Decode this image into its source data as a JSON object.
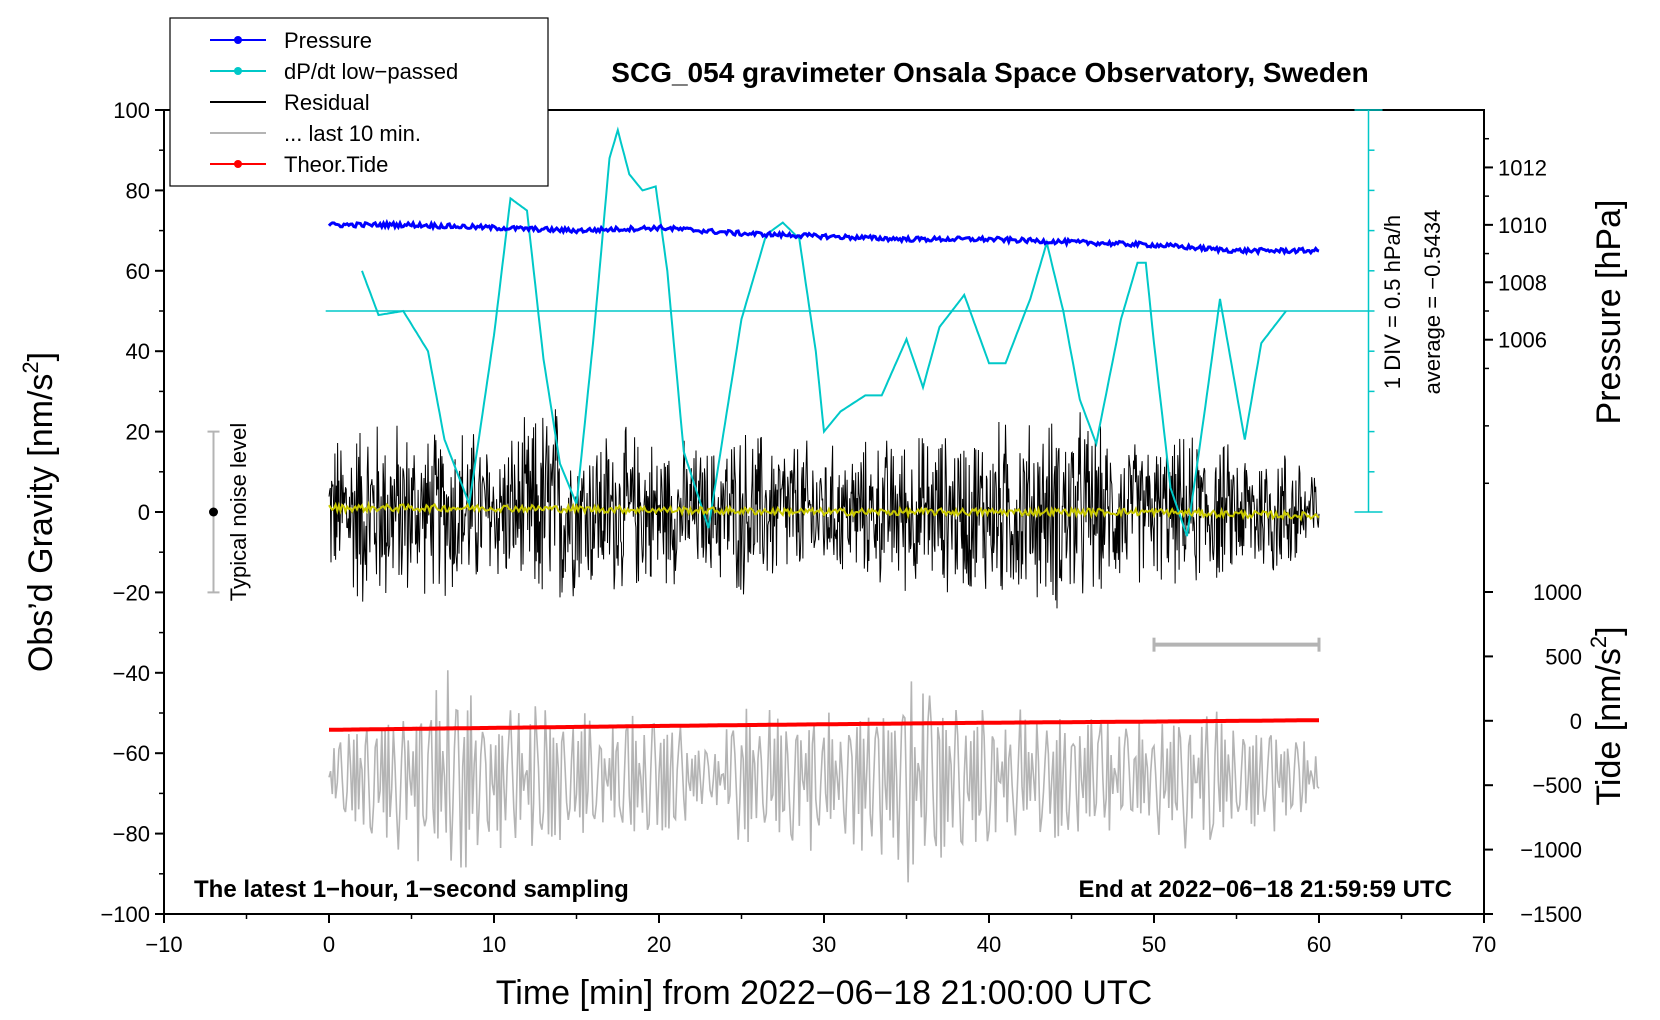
{
  "chart_data": {
    "type": "line",
    "title": "SCG_054 gravimeter Onsala Space Observatory, Sweden",
    "xlabel": "Time [min] from 2022−06−18 21:00:00 UTC",
    "ylabel_left": "Obs’d Gravity [nm/s",
    "ylabel_left_sup": "2",
    "ylabel_left_end": "]",
    "ylabel_right_top": "Pressure [hPa]",
    "ylabel_right_bottom": "Tide [nm/s",
    "ylabel_right_bottom_sup": "2",
    "ylabel_right_bottom_end": "]",
    "xlim": [
      -10,
      70
    ],
    "ylim_left": [
      -100,
      100
    ],
    "pressure_ylim": [
      1000,
      1014
    ],
    "tide_ylim": [
      -1500,
      1000
    ],
    "x_ticks": [
      "−10",
      "0",
      "10",
      "20",
      "30",
      "40",
      "50",
      "60",
      "70"
    ],
    "x_tick_values": [
      -10,
      0,
      10,
      20,
      30,
      40,
      50,
      60,
      70
    ],
    "y_left_ticks": [
      "100",
      "80",
      "60",
      "40",
      "20",
      "0",
      "−20",
      "−40",
      "−60",
      "−80",
      "−100"
    ],
    "y_left_tick_values": [
      100,
      80,
      60,
      40,
      20,
      0,
      -20,
      -40,
      -60,
      -80,
      -100
    ],
    "pressure_ticks": [
      "1012",
      "1010",
      "1008",
      "1006"
    ],
    "pressure_tick_values": [
      1012,
      1010,
      1008,
      1006
    ],
    "tide_ticks": [
      "1000",
      "500",
      "0",
      "−500",
      "−1000",
      "−1500"
    ],
    "tide_tick_values": [
      1000,
      500,
      0,
      -500,
      -1000,
      -1500
    ],
    "legend": [
      {
        "label": "Pressure",
        "color": "#0000ff",
        "marker": true
      },
      {
        "label": "dP/dt low−passed",
        "color": "#00c8c8",
        "marker": true
      },
      {
        "label": "Residual",
        "color": "#000000",
        "marker": false
      },
      {
        "label": "... last 10 min.",
        "color": "#b4b4b4",
        "marker": false
      },
      {
        "label": "Theor.Tide",
        "color": "#ff0000",
        "marker": true
      }
    ],
    "legend_position": "top-left",
    "annotations": {
      "bottom_left": "The latest 1−hour, 1−second sampling",
      "bottom_right": "End at 2022−06−18 21:59:59 UTC",
      "noise_label": "Typical noise level",
      "noise_range": [
        -20,
        20
      ],
      "noise_x": -7,
      "div_label": "1 DIV = 0.5 hPa/h",
      "average_label": "average = −0.5434",
      "div_scale_x": 63,
      "div_zero_level_gravity": 50,
      "last10_bar_minutes": [
        50,
        60
      ],
      "last10_bar_gravity": -33
    },
    "series": [
      {
        "name": "Pressure",
        "unit": "hPa",
        "color": "#0000ff",
        "x": [
          0,
          5,
          10,
          15,
          20,
          25,
          30,
          35,
          40,
          45,
          50,
          55,
          60
        ],
        "values": [
          1010.0,
          1010.0,
          1009.9,
          1009.8,
          1009.9,
          1009.7,
          1009.6,
          1009.5,
          1009.5,
          1009.4,
          1009.3,
          1009.1,
          1009.1
        ]
      },
      {
        "name": "dP/dt low−passed",
        "unit": "nm/s2 (display)",
        "color": "#00c8c8",
        "x": [
          2,
          3,
          4.5,
          6,
          7,
          8.5,
          10,
          11,
          12,
          13,
          14,
          15,
          16,
          17,
          17.5,
          18.2,
          19,
          19.8,
          20.5,
          21.5,
          23,
          25,
          26.5,
          27.5,
          28.5,
          29.5,
          30,
          31,
          32.5,
          33.5,
          35,
          36,
          37,
          38.5,
          40,
          41,
          42.5,
          43.5,
          44.5,
          45.5,
          46.5,
          48,
          49,
          49.5,
          50,
          51,
          52,
          53,
          54,
          55.5,
          56.5,
          58
        ],
        "values": [
          60,
          49,
          50,
          40,
          18,
          2,
          44,
          78,
          75,
          38,
          12,
          2,
          42,
          88,
          95,
          84,
          80,
          81,
          60,
          15,
          -4,
          48,
          69,
          72,
          68,
          40,
          20,
          25,
          29,
          29,
          43,
          31,
          46,
          54,
          37,
          37,
          53,
          67,
          50,
          28,
          17,
          48,
          62,
          62,
          42,
          6,
          -6,
          23,
          53,
          18,
          42,
          50
        ]
      },
      {
        "name": "Residual",
        "unit": "nm/s2",
        "color": "#000000",
        "x": [
          0,
          2,
          4,
          6,
          8,
          10,
          12,
          13.5,
          15,
          17,
          19,
          21,
          23,
          25,
          27,
          29,
          31,
          33,
          35,
          37,
          39,
          41,
          43,
          45,
          47,
          49,
          51,
          53,
          55,
          57,
          59,
          60
        ],
        "envelope": [
          20,
          28,
          26,
          22,
          26,
          20,
          25,
          34,
          22,
          24,
          22,
          20,
          18,
          24,
          22,
          20,
          18,
          20,
          22,
          22,
          24,
          26,
          25,
          30,
          22,
          20,
          20,
          22,
          18,
          20,
          17,
          12
        ]
      },
      {
        "name": "... last 10 min.",
        "unit": "nm/s2 (display, magnified)",
        "color": "#b4b4b4",
        "center": -66,
        "x": [
          0,
          3,
          6,
          7,
          10,
          13,
          16,
          20,
          23,
          25,
          28,
          30,
          33,
          35.5,
          38,
          41,
          44,
          47,
          50,
          53,
          55,
          58,
          60
        ],
        "envelope": [
          10,
          18,
          22,
          28,
          18,
          22,
          16,
          20,
          8,
          18,
          22,
          16,
          20,
          30,
          20,
          18,
          16,
          18,
          14,
          22,
          14,
          14,
          6
        ]
      },
      {
        "name": "Theor.Tide",
        "unit": "nm/s2",
        "color": "#ff0000",
        "x": [
          0,
          10,
          20,
          30,
          40,
          50,
          60
        ],
        "values": [
          -70,
          -55,
          -40,
          -27,
          -15,
          -6,
          5
        ]
      },
      {
        "name": "Residual smoothed",
        "unit": "nm/s2",
        "color": "#c8c800",
        "x": [
          0,
          10,
          20,
          30,
          40,
          50,
          60
        ],
        "values": [
          1,
          1,
          0.5,
          0,
          0,
          0,
          -1
        ]
      }
    ]
  }
}
